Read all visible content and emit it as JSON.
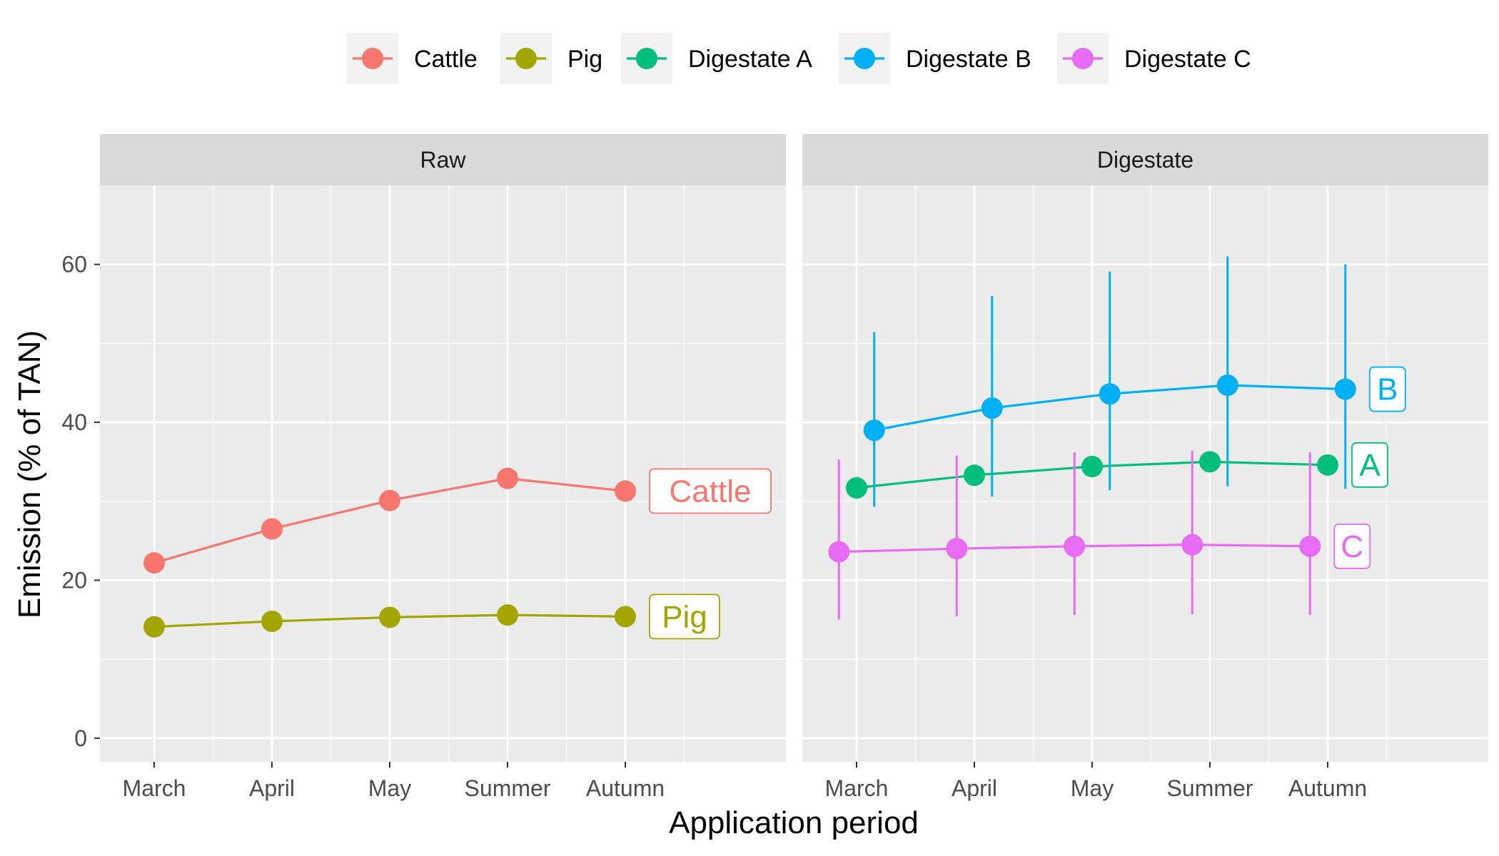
{
  "chart_data": {
    "type": "line",
    "xlabel": "Application period",
    "ylabel": "Emission (% of TAN)",
    "categories": [
      "March",
      "April",
      "May",
      "Summer",
      "Autumn"
    ],
    "ylim": [
      -3,
      70
    ],
    "yticks": [
      0,
      20,
      40,
      60
    ],
    "grid": true,
    "legend_position": "top",
    "legend": [
      {
        "name": "Cattle",
        "color": "#F8766D"
      },
      {
        "name": "Pig",
        "color": "#A3A500"
      },
      {
        "name": "Digestate A",
        "color": "#00BF7D"
      },
      {
        "name": "Digestate B",
        "color": "#00B0F6"
      },
      {
        "name": "Digestate C",
        "color": "#E76BF3"
      }
    ],
    "panels": [
      {
        "title": "Raw",
        "series": [
          {
            "name": "Cattle",
            "label": "Cattle",
            "color": "#F8766D",
            "values": [
              22.2,
              26.5,
              30.1,
              32.9,
              31.3
            ]
          },
          {
            "name": "Pig",
            "label": "Pig",
            "color": "#A3A500",
            "values": [
              14.1,
              14.8,
              15.3,
              15.6,
              15.4
            ]
          }
        ]
      },
      {
        "title": "Digestate",
        "series": [
          {
            "name": "Digestate B",
            "label": "B",
            "color": "#00B0F6",
            "offset": 0.15,
            "values": [
              39.0,
              41.8,
              43.6,
              44.7,
              44.2
            ],
            "lower": [
              29.3,
              30.6,
              31.4,
              31.9,
              31.6
            ],
            "upper": [
              51.4,
              56.0,
              59.1,
              61.0,
              60.0
            ]
          },
          {
            "name": "Digestate A",
            "label": "A",
            "color": "#00BF7D",
            "offset": 0.0,
            "values": [
              31.7,
              33.3,
              34.4,
              35.0,
              34.6
            ]
          },
          {
            "name": "Digestate C",
            "label": "C",
            "color": "#E76BF3",
            "offset": -0.15,
            "values": [
              23.6,
              24.0,
              24.3,
              24.5,
              24.3
            ],
            "lower": [
              15.0,
              15.4,
              15.6,
              15.7,
              15.6
            ],
            "upper": [
              35.3,
              35.8,
              36.2,
              36.4,
              36.2
            ]
          }
        ]
      }
    ]
  }
}
